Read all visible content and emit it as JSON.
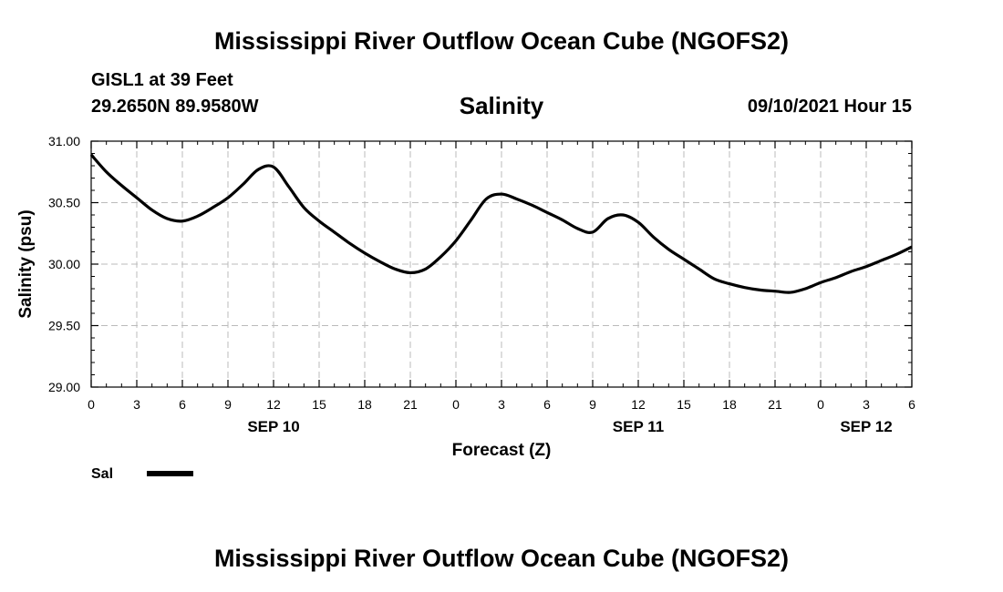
{
  "header": {
    "title": "Mississippi River Outflow Ocean Cube (NGOFS2)",
    "station": "GISL1 at 39 Feet",
    "coords": "29.2650N  89.9580W",
    "timestamp": "09/10/2021 Hour 15"
  },
  "footer": {
    "title": "Mississippi River Outflow Ocean Cube (NGOFS2)"
  },
  "chart_data": {
    "type": "line",
    "title": "Salinity",
    "xlabel": "Forecast (Z)",
    "ylabel": "Salinity (psu)",
    "ylim": [
      29.0,
      31.0
    ],
    "xlim": [
      0,
      54
    ],
    "x_unit": "forecast hours from 00Z Sep 10",
    "x_ticks": [
      0,
      3,
      6,
      9,
      12,
      15,
      18,
      21,
      24,
      27,
      30,
      33,
      36,
      39,
      42,
      45,
      48,
      51,
      54
    ],
    "x_tick_labels": [
      "0",
      "3",
      "6",
      "9",
      "12",
      "15",
      "18",
      "21",
      "0",
      "3",
      "6",
      "9",
      "12",
      "15",
      "18",
      "21",
      "0",
      "3",
      "6"
    ],
    "y_ticks": [
      29.0,
      29.5,
      30.0,
      30.5,
      31.0
    ],
    "y_tick_labels": [
      "29.00",
      "29.50",
      "30.00",
      "30.50",
      "31.00"
    ],
    "date_labels": [
      {
        "x": 12,
        "label": "SEP 10"
      },
      {
        "x": 36,
        "label": "SEP 11"
      },
      {
        "x": 51,
        "label": "SEP 12"
      }
    ],
    "grid": true,
    "legend": "bottom-left",
    "series": [
      {
        "name": "Sal",
        "color": "#000000",
        "x": [
          0,
          1,
          2,
          3,
          4,
          5,
          6,
          7,
          8,
          9,
          10,
          11,
          12,
          13,
          14,
          15,
          16,
          17,
          18,
          19,
          20,
          21,
          22,
          23,
          24,
          25,
          26,
          27,
          28,
          29,
          30,
          31,
          32,
          33,
          34,
          35,
          36,
          37,
          38,
          39,
          40,
          41,
          42,
          43,
          44,
          45,
          46,
          47,
          48,
          49,
          50,
          51,
          52,
          53,
          54
        ],
        "values": [
          30.89,
          30.75,
          30.64,
          30.54,
          30.44,
          30.37,
          30.35,
          30.39,
          30.46,
          30.54,
          30.65,
          30.77,
          30.79,
          30.63,
          30.46,
          30.35,
          30.26,
          30.17,
          30.09,
          30.02,
          29.96,
          29.93,
          29.96,
          30.06,
          30.19,
          30.36,
          30.53,
          30.57,
          30.53,
          30.48,
          30.42,
          30.36,
          30.29,
          30.26,
          30.37,
          30.4,
          30.34,
          30.22,
          30.12,
          30.04,
          29.96,
          29.88,
          29.84,
          29.81,
          29.79,
          29.78,
          29.77,
          29.8,
          29.85,
          29.89,
          29.94,
          29.98,
          30.03,
          30.08,
          30.14
        ]
      }
    ]
  }
}
